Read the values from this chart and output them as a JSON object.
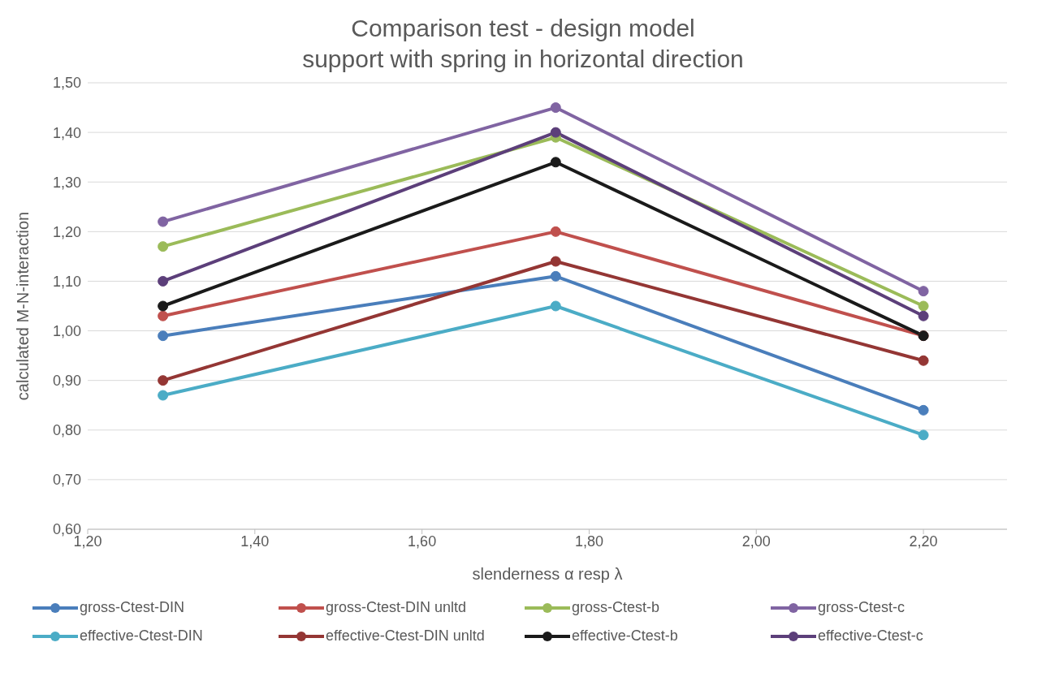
{
  "chart_data": {
    "type": "line",
    "title": "Comparison test - design model",
    "subtitle": "support with spring in horizontal direction",
    "xlabel": "slenderness α resp λ",
    "ylabel": "calculated M-N-interaction",
    "x": [
      1.29,
      1.76,
      2.2
    ],
    "series": [
      {
        "name": "gross-Ctest-DIN",
        "color": "#4a7ebb",
        "values": [
          0.99,
          1.11,
          0.84
        ]
      },
      {
        "name": "gross-Ctest-DIN unltd",
        "color": "#c0504d",
        "values": [
          1.03,
          1.2,
          0.99
        ]
      },
      {
        "name": "gross-Ctest-b",
        "color": "#9bbb59",
        "values": [
          1.17,
          1.39,
          1.05
        ]
      },
      {
        "name": "gross-Ctest-c",
        "color": "#8064a2",
        "values": [
          1.22,
          1.45,
          1.08
        ]
      },
      {
        "name": "effective-Ctest-DIN",
        "color": "#4bacc6",
        "values": [
          0.87,
          1.05,
          0.79
        ]
      },
      {
        "name": "effective-Ctest-DIN unltd",
        "color": "#943634",
        "values": [
          0.9,
          1.14,
          0.94
        ]
      },
      {
        "name": "effective-Ctest-b",
        "color": "#1a1a1a",
        "values": [
          1.05,
          1.34,
          0.99
        ]
      },
      {
        "name": "effective-Ctest-c",
        "color": "#5c3f7a",
        "values": [
          1.1,
          1.4,
          1.03
        ]
      }
    ],
    "xlim": [
      1.2,
      2.3
    ],
    "xticks": [
      {
        "value": 1.2,
        "label": "1,20"
      },
      {
        "value": 1.4,
        "label": "1,40"
      },
      {
        "value": 1.6,
        "label": "1,60"
      },
      {
        "value": 1.8,
        "label": "1,80"
      },
      {
        "value": 2.0,
        "label": "2,00"
      },
      {
        "value": 2.2,
        "label": "2,20"
      }
    ],
    "ylim": [
      0.6,
      1.5
    ],
    "yticks": [
      {
        "value": 0.6,
        "label": "0,60"
      },
      {
        "value": 0.7,
        "label": "0,70"
      },
      {
        "value": 0.8,
        "label": "0,80"
      },
      {
        "value": 0.9,
        "label": "0,90"
      },
      {
        "value": 1.0,
        "label": "1,00"
      },
      {
        "value": 1.1,
        "label": "1,10"
      },
      {
        "value": 1.2,
        "label": "1,20"
      },
      {
        "value": 1.3,
        "label": "1,30"
      },
      {
        "value": 1.4,
        "label": "1,40"
      },
      {
        "value": 1.5,
        "label": "1,50"
      }
    ],
    "grid": "y",
    "legend": "bottom",
    "marker": "circle",
    "line_style": "solid"
  }
}
